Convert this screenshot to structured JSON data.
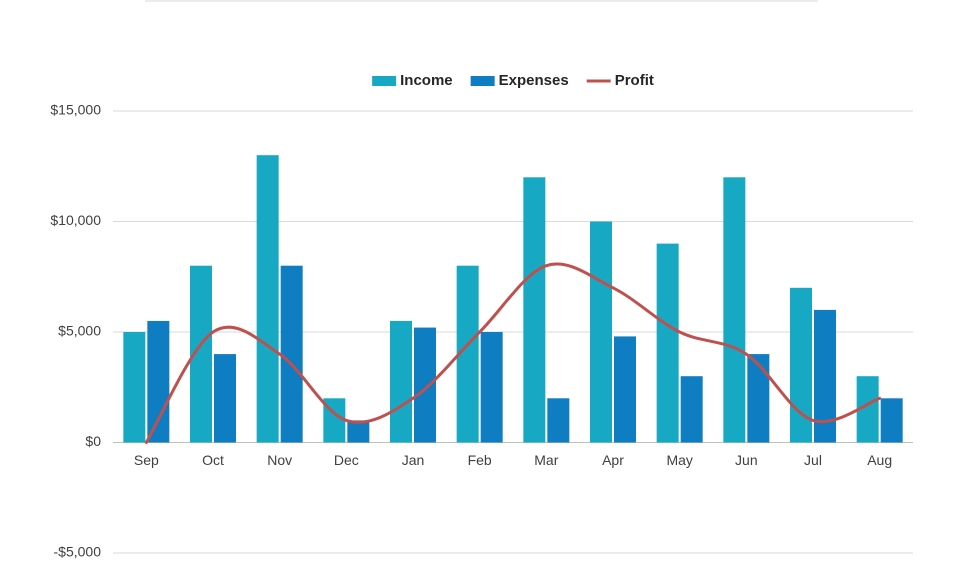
{
  "chart_data": {
    "type": "combo",
    "categories": [
      "Sep",
      "Oct",
      "Nov",
      "Dec",
      "Jan",
      "Feb",
      "Mar",
      "Apr",
      "May",
      "Jun",
      "Jul",
      "Aug"
    ],
    "series": [
      {
        "name": "Income",
        "type": "bar",
        "color": "#17a9c4",
        "values": [
          5000,
          8000,
          13000,
          2000,
          5500,
          8000,
          12000,
          10000,
          9000,
          12000,
          7000,
          3000
        ]
      },
      {
        "name": "Expenses",
        "type": "bar",
        "color": "#0e7dc2",
        "values": [
          5500,
          4000,
          8000,
          1000,
          5200,
          5000,
          2000,
          4800,
          3000,
          4000,
          6000,
          2000
        ]
      },
      {
        "name": "Profit",
        "type": "line",
        "color": "#c0504d",
        "values": [
          0,
          5000,
          4000,
          1000,
          2000,
          5000,
          8000,
          7000,
          5000,
          4000,
          1000,
          2000
        ]
      }
    ],
    "ylim": [
      -5000,
      15000
    ],
    "yticks": [
      {
        "value": -5000,
        "label": "-$5,000"
      },
      {
        "value": 0,
        "label": "$0"
      },
      {
        "value": 5000,
        "label": "$5,000"
      },
      {
        "value": 10000,
        "label": "$10,000"
      },
      {
        "value": 15000,
        "label": "$15,000"
      }
    ],
    "grid": true,
    "legend": "top"
  }
}
